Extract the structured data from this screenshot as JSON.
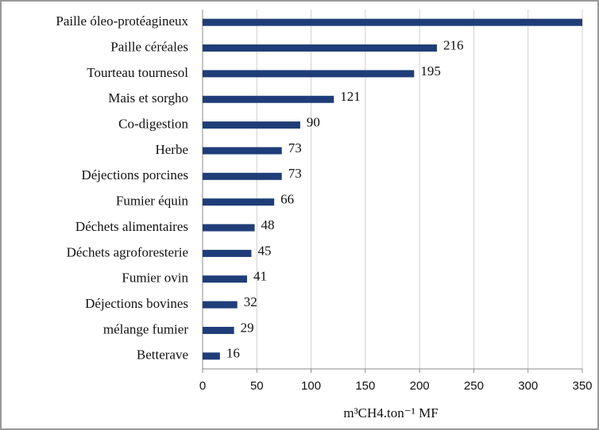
{
  "chart_data": {
    "type": "bar",
    "orientation": "horizontal",
    "categories": [
      "Paille óleo-protéagineux",
      "Paille céréales",
      "Tourteau tournesol",
      "Mais et sorgho",
      "Co-digestion",
      "Herbe",
      "Déjections porcines",
      "Fumier équin",
      "Déchets alimentaires",
      "Déchets agroforesterie",
      "Fumier ovin",
      "Déjections bovines",
      "mélange fumier",
      "Betterave"
    ],
    "values": [
      350,
      216,
      195,
      121,
      90,
      73,
      73,
      66,
      48,
      45,
      41,
      32,
      29,
      16
    ],
    "value_labels": [
      null,
      "216",
      "195",
      "121",
      "90",
      "73",
      "73",
      "66",
      "48",
      "45",
      "41",
      "32",
      "29",
      "16"
    ],
    "color": "#1f3d78",
    "xlabel": "m³CH4.ton⁻¹ MF",
    "xlim": [
      0,
      350
    ],
    "xticks": [
      0,
      50,
      100,
      150,
      200,
      250,
      300,
      350
    ],
    "grid": true
  }
}
